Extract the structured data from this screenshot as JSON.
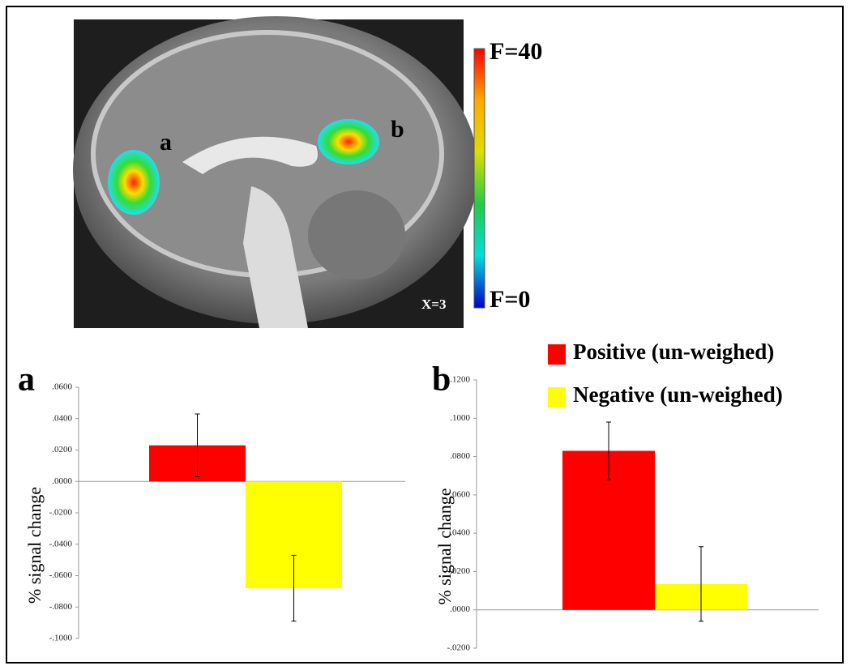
{
  "image": {
    "label_a": "a",
    "label_b": "b",
    "slice": "X=3",
    "scale_max": "F=40",
    "scale_min": "F=0"
  },
  "chart_data": [
    {
      "type": "bar",
      "panel": "a",
      "ylabel": "% signal change",
      "categories": [
        null
      ],
      "series": [
        {
          "color": "#ff0000",
          "values": [
            0.023
          ],
          "errors": [
            0.02
          ]
        },
        {
          "color": "#ffff00",
          "values": [
            -0.068
          ],
          "errors": [
            0.021
          ]
        }
      ],
      "ylim": [
        -0.1,
        0.06
      ],
      "yticks": [
        {
          "value": 0.06,
          "label": ".0600"
        },
        {
          "value": 0.04,
          "label": ".0400"
        },
        {
          "value": 0.02,
          "label": ".0200"
        },
        {
          "value": 0,
          "label": ".0000"
        },
        {
          "value": -0.02,
          "label": "-.0200"
        },
        {
          "value": -0.04,
          "label": "-.0400"
        },
        {
          "value": -0.06,
          "label": "-.0600"
        },
        {
          "value": -0.08,
          "label": "-.0800"
        },
        {
          "value": -0.1,
          "label": "-.1000"
        }
      ],
      "grid": false
    },
    {
      "type": "bar",
      "panel": "b",
      "ylabel": "% signal change",
      "categories": [
        null
      ],
      "series": [
        {
          "name": "Positive (un-weighed)",
          "color": "#ff0000",
          "values": [
            0.083
          ],
          "errors": [
            0.015
          ]
        },
        {
          "name": "Negative (un-weighed)",
          "color": "#ffff00",
          "values": [
            0.0135
          ],
          "errors": [
            0.0195
          ]
        }
      ],
      "ylim": [
        -0.02,
        0.12
      ],
      "yticks": [
        {
          "value": 0.12,
          "label": ".1200"
        },
        {
          "value": 0.1,
          "label": ".1000"
        },
        {
          "value": 0.08,
          "label": ".0800"
        },
        {
          "value": 0.06,
          "label": ".0600"
        },
        {
          "value": 0.04,
          "label": ".0400"
        },
        {
          "value": 0.02,
          "label": ".0200"
        },
        {
          "value": 0,
          "label": ".0000"
        },
        {
          "value": -0.02,
          "label": "-.0200"
        }
      ],
      "grid": false,
      "legend": "top-right"
    }
  ]
}
